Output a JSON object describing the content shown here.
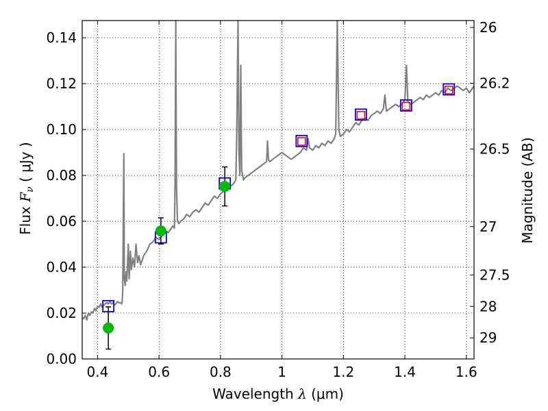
{
  "chart_data": {
    "type": "line",
    "xlabel": {
      "prefix": "Wavelength  ",
      "symbol": "λ",
      "units": " (μm)"
    },
    "ylabel": {
      "prefix": "Flux  ",
      "symbol": "F",
      "subscript": "ν",
      "units": "  ( μJy )"
    },
    "y2label": "Magnitude (AB)",
    "xlim": [
      0.35,
      1.625
    ],
    "ylim": [
      0.0,
      0.1475
    ],
    "xticks": [
      0.4,
      0.6,
      0.8,
      1.0,
      1.2,
      1.4,
      1.6
    ],
    "xtick_labels": [
      "0.4",
      "0.6",
      "0.8",
      "1",
      "1.2",
      "1.4",
      "1.6"
    ],
    "yticks": [
      0.0,
      0.02,
      0.04,
      0.06,
      0.08,
      0.1,
      0.12,
      0.14
    ],
    "ytick_labels": [
      "0.00",
      "0.02",
      "0.04",
      "0.06",
      "0.08",
      "0.10",
      "0.12",
      "0.14"
    ],
    "y2_ticks": [
      {
        "label": "26",
        "flux": 0.1445
      },
      {
        "label": "26.2",
        "flux": 0.1202
      },
      {
        "label": "26.5",
        "flux": 0.0915
      },
      {
        "label": "27",
        "flux": 0.0577
      },
      {
        "label": "27.5",
        "flux": 0.0366
      },
      {
        "label": "28",
        "flux": 0.0229
      },
      {
        "label": "29",
        "flux": 0.0092
      }
    ],
    "grid": true,
    "colors": {
      "sed": "#808080",
      "model": "#0000ff",
      "observed_model": "#ff0000",
      "observed": "#00bb00",
      "errorbar": "#000000"
    },
    "sed_spectrum": [
      [
        0.35,
        0.018
      ],
      [
        0.355,
        0.0175
      ],
      [
        0.36,
        0.019
      ],
      [
        0.365,
        0.017
      ],
      [
        0.37,
        0.02
      ],
      [
        0.375,
        0.019
      ],
      [
        0.38,
        0.0205
      ],
      [
        0.385,
        0.02
      ],
      [
        0.39,
        0.022
      ],
      [
        0.395,
        0.021
      ],
      [
        0.4,
        0.023
      ],
      [
        0.405,
        0.0225
      ],
      [
        0.41,
        0.024
      ],
      [
        0.415,
        0.0225
      ],
      [
        0.42,
        0.0235
      ],
      [
        0.425,
        0.024
      ],
      [
        0.43,
        0.0245
      ],
      [
        0.435,
        0.024
      ],
      [
        0.44,
        0.025
      ],
      [
        0.445,
        0.024
      ],
      [
        0.45,
        0.0245
      ],
      [
        0.455,
        0.0235
      ],
      [
        0.46,
        0.024
      ],
      [
        0.465,
        0.025
      ],
      [
        0.47,
        0.0245
      ],
      [
        0.475,
        0.0245
      ],
      [
        0.478,
        0.024
      ],
      [
        0.48,
        0.0245
      ],
      [
        0.482,
        0.03
      ],
      [
        0.4855,
        0.0895
      ],
      [
        0.487,
        0.035
      ],
      [
        0.49,
        0.032
      ],
      [
        0.493,
        0.038
      ],
      [
        0.495,
        0.034
      ],
      [
        0.5,
        0.05
      ],
      [
        0.503,
        0.035
      ],
      [
        0.507,
        0.047
      ],
      [
        0.51,
        0.039
      ],
      [
        0.515,
        0.044
      ],
      [
        0.52,
        0.04
      ],
      [
        0.525,
        0.05
      ],
      [
        0.53,
        0.042
      ],
      [
        0.535,
        0.045
      ],
      [
        0.54,
        0.041
      ],
      [
        0.545,
        0.043
      ],
      [
        0.55,
        0.045
      ],
      [
        0.56,
        0.047
      ],
      [
        0.57,
        0.05
      ],
      [
        0.58,
        0.051
      ],
      [
        0.59,
        0.053
      ],
      [
        0.6,
        0.052
      ],
      [
        0.61,
        0.054
      ],
      [
        0.62,
        0.056
      ],
      [
        0.63,
        0.055
      ],
      [
        0.64,
        0.057
      ],
      [
        0.645,
        0.058
      ],
      [
        0.65,
        0.057
      ],
      [
        0.652,
        0.075
      ],
      [
        0.6545,
        0.1475
      ],
      [
        0.657,
        0.075
      ],
      [
        0.66,
        0.06
      ],
      [
        0.665,
        0.059
      ],
      [
        0.67,
        0.06
      ],
      [
        0.68,
        0.061
      ],
      [
        0.69,
        0.063
      ],
      [
        0.7,
        0.062
      ],
      [
        0.71,
        0.064
      ],
      [
        0.72,
        0.065
      ],
      [
        0.73,
        0.064
      ],
      [
        0.74,
        0.066
      ],
      [
        0.75,
        0.068
      ],
      [
        0.76,
        0.067
      ],
      [
        0.77,
        0.069
      ],
      [
        0.78,
        0.071
      ],
      [
        0.79,
        0.07
      ],
      [
        0.8,
        0.072
      ],
      [
        0.81,
        0.073
      ],
      [
        0.82,
        0.074
      ],
      [
        0.83,
        0.075
      ],
      [
        0.84,
        0.076
      ],
      [
        0.845,
        0.077
      ],
      [
        0.85,
        0.078
      ],
      [
        0.853,
        0.1
      ],
      [
        0.857,
        0.1475
      ],
      [
        0.86,
        0.09
      ],
      [
        0.863,
        0.08
      ],
      [
        0.866,
        0.128
      ],
      [
        0.869,
        0.082
      ],
      [
        0.875,
        0.078
      ],
      [
        0.88,
        0.079
      ],
      [
        0.89,
        0.08
      ],
      [
        0.9,
        0.081
      ],
      [
        0.91,
        0.082
      ],
      [
        0.92,
        0.083
      ],
      [
        0.93,
        0.084
      ],
      [
        0.94,
        0.085
      ],
      [
        0.95,
        0.086
      ],
      [
        0.953,
        0.095
      ],
      [
        0.956,
        0.087
      ],
      [
        0.96,
        0.086
      ],
      [
        0.97,
        0.087
      ],
      [
        0.98,
        0.088
      ],
      [
        0.99,
        0.089
      ],
      [
        1.0,
        0.09
      ],
      [
        1.01,
        0.089
      ],
      [
        1.02,
        0.088
      ],
      [
        1.03,
        0.087
      ],
      [
        1.04,
        0.088
      ],
      [
        1.05,
        0.089
      ],
      [
        1.06,
        0.09
      ],
      [
        1.07,
        0.092
      ],
      [
        1.08,
        0.091
      ],
      [
        1.085,
        0.096
      ],
      [
        1.09,
        0.092
      ],
      [
        1.1,
        0.091
      ],
      [
        1.11,
        0.093
      ],
      [
        1.12,
        0.092
      ],
      [
        1.13,
        0.094
      ],
      [
        1.14,
        0.093
      ],
      [
        1.15,
        0.095
      ],
      [
        1.16,
        0.094
      ],
      [
        1.17,
        0.096
      ],
      [
        1.175,
        0.098
      ],
      [
        1.18,
        0.1475
      ],
      [
        1.185,
        0.1
      ],
      [
        1.19,
        0.097
      ],
      [
        1.2,
        0.098
      ],
      [
        1.21,
        0.1
      ],
      [
        1.22,
        0.099
      ],
      [
        1.23,
        0.101
      ],
      [
        1.24,
        0.103
      ],
      [
        1.25,
        0.102
      ],
      [
        1.26,
        0.104
      ],
      [
        1.27,
        0.105
      ],
      [
        1.28,
        0.104
      ],
      [
        1.29,
        0.106
      ],
      [
        1.3,
        0.107
      ],
      [
        1.31,
        0.108
      ],
      [
        1.32,
        0.107
      ],
      [
        1.33,
        0.109
      ],
      [
        1.335,
        0.115
      ],
      [
        1.34,
        0.108
      ],
      [
        1.35,
        0.109
      ],
      [
        1.36,
        0.11
      ],
      [
        1.37,
        0.111
      ],
      [
        1.38,
        0.11
      ],
      [
        1.39,
        0.111
      ],
      [
        1.4,
        0.113
      ],
      [
        1.405,
        0.128
      ],
      [
        1.41,
        0.112
      ],
      [
        1.42,
        0.111
      ],
      [
        1.43,
        0.112
      ],
      [
        1.44,
        0.113
      ],
      [
        1.45,
        0.114
      ],
      [
        1.46,
        0.113
      ],
      [
        1.47,
        0.115
      ],
      [
        1.48,
        0.114
      ],
      [
        1.49,
        0.115
      ],
      [
        1.5,
        0.116
      ],
      [
        1.51,
        0.115
      ],
      [
        1.52,
        0.117
      ],
      [
        1.53,
        0.116
      ],
      [
        1.54,
        0.118
      ],
      [
        1.55,
        0.117
      ],
      [
        1.56,
        0.118
      ],
      [
        1.57,
        0.119
      ],
      [
        1.58,
        0.118
      ],
      [
        1.59,
        0.117
      ],
      [
        1.6,
        0.118
      ],
      [
        1.61,
        0.116
      ],
      [
        1.625,
        0.119
      ]
    ],
    "model_photometry": [
      {
        "x": 0.435,
        "y": 0.023
      },
      {
        "x": 0.606,
        "y": 0.053
      },
      {
        "x": 0.814,
        "y": 0.0765
      },
      {
        "x": 1.064,
        "y": 0.095
      },
      {
        "x": 1.257,
        "y": 0.1065
      },
      {
        "x": 1.404,
        "y": 0.1105
      },
      {
        "x": 1.543,
        "y": 0.1175
      }
    ],
    "observed_model_photometry": [
      {
        "x": 1.064,
        "y": 0.0948
      },
      {
        "x": 1.257,
        "y": 0.1062
      },
      {
        "x": 1.404,
        "y": 0.1102
      },
      {
        "x": 1.543,
        "y": 0.1172
      }
    ],
    "observed_photometry": [
      {
        "x": 0.435,
        "y": 0.0135,
        "yerr": 0.0092
      },
      {
        "x": 0.606,
        "y": 0.0558,
        "yerr": 0.0057
      },
      {
        "x": 0.814,
        "y": 0.0752,
        "yerr": 0.0085
      }
    ]
  }
}
